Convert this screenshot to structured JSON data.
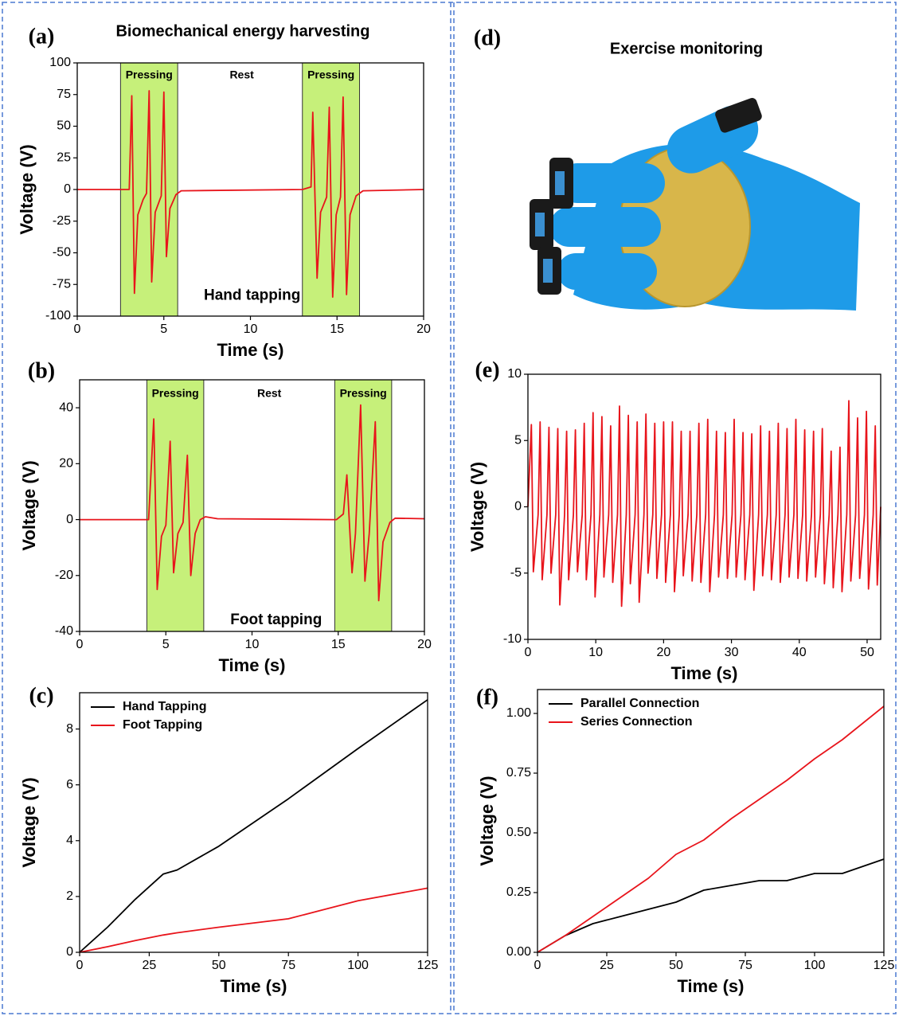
{
  "chart_data": [
    {
      "type": "line",
      "label": "(a)",
      "title": "Biomechanical energy harvesting",
      "x_label": "Time (s)",
      "y_label": "Voltage (V)",
      "xlim": [
        0,
        20
      ],
      "ylim": [
        -100,
        100
      ],
      "xticks": [
        0,
        5,
        10,
        15,
        20
      ],
      "yticks": [
        -100,
        -75,
        -50,
        -25,
        0,
        25,
        50,
        75,
        100
      ],
      "color": "#e8141b",
      "region_color": "#c6f07a",
      "regions": [
        [
          2.5,
          5.8
        ],
        [
          13.0,
          16.3
        ]
      ],
      "annotations": [
        {
          "text": "Pressing",
          "x": 4.15,
          "y": 90
        },
        {
          "text": "Rest",
          "x": 9.5,
          "y": 90
        },
        {
          "text": "Pressing",
          "x": 14.65,
          "y": 90
        },
        {
          "text": "Hand tapping",
          "x": 10.1,
          "y": -84
        }
      ],
      "x": [
        0,
        3.0,
        3.15,
        3.3,
        3.5,
        3.8,
        4.0,
        4.15,
        4.3,
        4.5,
        4.85,
        5.0,
        5.15,
        5.35,
        5.7,
        6.0,
        13.0,
        13.5,
        13.6,
        13.85,
        14.05,
        14.4,
        14.55,
        14.75,
        14.95,
        15.2,
        15.35,
        15.55,
        15.75,
        16.1,
        16.5,
        20
      ],
      "values": [
        0,
        0,
        74,
        -82,
        -20,
        -8,
        -3,
        78,
        -73,
        -18,
        -5,
        77,
        -53,
        -15,
        -4,
        -1,
        0,
        2,
        61,
        -70,
        -18,
        -6,
        65,
        -85,
        -20,
        -6,
        73,
        -83,
        -20,
        -5,
        -1,
        0
      ]
    },
    {
      "type": "line",
      "label": "(b)",
      "x_label": "Time (s)",
      "y_label": "Voltage (V)",
      "xlim": [
        0,
        20
      ],
      "ylim": [
        -40,
        50
      ],
      "xticks": [
        0,
        5,
        10,
        15,
        20
      ],
      "yticks": [
        -40,
        -20,
        0,
        20,
        40
      ],
      "color": "#e8141b",
      "region_color": "#c6f07a",
      "regions": [
        [
          3.9,
          7.2
        ],
        [
          14.8,
          18.1
        ]
      ],
      "annotations": [
        {
          "text": "Pressing",
          "x": 5.55,
          "y": 45
        },
        {
          "text": "Rest",
          "x": 11,
          "y": 45
        },
        {
          "text": "Pressing",
          "x": 16.45,
          "y": 45
        },
        {
          "text": "Foot tapping",
          "x": 11.4,
          "y": -36
        }
      ],
      "x": [
        0,
        4.0,
        4.3,
        4.5,
        4.75,
        5.0,
        5.25,
        5.45,
        5.7,
        6.0,
        6.25,
        6.45,
        6.7,
        7.0,
        7.3,
        8,
        14.9,
        15.3,
        15.5,
        15.8,
        16.0,
        16.3,
        16.55,
        16.8,
        17.15,
        17.35,
        17.6,
        18.0,
        18.3,
        20
      ],
      "values": [
        0,
        0,
        36,
        -25,
        -6,
        -2,
        28,
        -19,
        -5,
        -1,
        23,
        -20,
        -5,
        0,
        1,
        0.3,
        0,
        2,
        16,
        -19,
        -5,
        41,
        -22,
        -5,
        35,
        -29,
        -8,
        -1,
        0.5,
        0.3
      ]
    },
    {
      "type": "line",
      "label": "(c)",
      "x_label": "Time (s)",
      "y_label": "Voltage (V)",
      "xlim": [
        0,
        125
      ],
      "ylim": [
        0,
        9.3
      ],
      "xticks": [
        0,
        25,
        50,
        75,
        100,
        125
      ],
      "yticks": [
        0,
        2,
        4,
        6,
        8
      ],
      "legend": "upper left",
      "x": [
        0,
        10,
        20,
        30,
        35,
        50,
        75,
        100,
        125
      ],
      "series": [
        {
          "name": "Hand Tapping",
          "color": "#000000",
          "values": [
            0,
            0.9,
            1.9,
            2.8,
            2.95,
            3.8,
            5.5,
            7.3,
            9.05
          ]
        },
        {
          "name": "Foot Tapping",
          "color": "#e8141b",
          "values": [
            0,
            0.2,
            0.42,
            0.62,
            0.7,
            0.9,
            1.2,
            1.85,
            2.3
          ]
        }
      ]
    },
    {
      "type": "line",
      "label": "(e)",
      "x_label": "Time (s)",
      "y_label": "Voltage (V)",
      "xlim": [
        0,
        52
      ],
      "ylim": [
        -10,
        10
      ],
      "xticks": [
        0,
        10,
        20,
        30,
        40,
        50
      ],
      "yticks": [
        -10,
        -5,
        0,
        5,
        10
      ],
      "color": "#e8141b",
      "x": [
        0,
        0.5,
        0.8,
        1.5,
        1.8,
        2.1,
        2.8,
        3.1,
        3.4,
        4.1,
        4.4,
        4.7,
        5.4,
        5.7,
        6.0,
        6.7,
        7.0,
        7.3,
        8.0,
        8.3,
        8.6,
        9.3,
        9.6,
        9.9,
        10.6,
        10.9,
        11.2,
        11.9,
        12.2,
        12.5,
        13.2,
        13.5,
        13.8,
        14.5,
        14.8,
        15.1,
        15.8,
        16.1,
        16.4,
        17.1,
        17.4,
        17.7,
        18.4,
        18.7,
        19.0,
        19.7,
        20.0,
        20.3,
        21.0,
        21.3,
        21.6,
        22.3,
        22.6,
        22.9,
        23.6,
        23.9,
        24.2,
        24.9,
        25.2,
        25.5,
        26.2,
        26.5,
        26.8,
        27.5,
        27.8,
        28.1,
        28.8,
        29.1,
        29.4,
        30.1,
        30.4,
        30.7,
        31.4,
        31.7,
        32.0,
        32.7,
        33.0,
        33.3,
        34.0,
        34.3,
        34.6,
        35.3,
        35.6,
        35.9,
        36.6,
        36.9,
        37.2,
        37.9,
        38.2,
        38.5,
        39.2,
        39.5,
        39.8,
        40.5,
        40.8,
        41.1,
        41.8,
        42.1,
        42.4,
        43.1,
        43.4,
        43.7,
        44.4,
        44.7,
        45.0,
        45.7,
        46.0,
        46.3,
        47.0,
        47.3,
        47.6,
        48.3,
        48.6,
        48.9,
        49.6,
        49.9,
        50.2,
        50.9,
        51.2,
        51.5,
        52.0
      ],
      "values": [
        0,
        6.2,
        -4.9,
        -0.6,
        6.4,
        -5.5,
        -0.6,
        6.0,
        -5.0,
        -0.6,
        5.9,
        -7.4,
        -0.6,
        5.7,
        -5.5,
        -0.6,
        5.8,
        -4.9,
        -0.6,
        6.3,
        -5.5,
        -0.6,
        7.1,
        -6.8,
        -0.6,
        6.8,
        -5.3,
        -0.6,
        6.1,
        -5.7,
        -0.6,
        7.6,
        -7.5,
        -0.6,
        6.9,
        -5.8,
        -0.6,
        6.4,
        -7.2,
        -0.6,
        7.0,
        -5.0,
        -0.6,
        6.3,
        -5.4,
        -0.6,
        6.4,
        -5.7,
        -0.6,
        6.4,
        -6.4,
        -0.6,
        5.7,
        -5.2,
        -0.6,
        5.7,
        -5.6,
        -0.6,
        6.3,
        -5.7,
        -0.6,
        6.6,
        -6.4,
        -0.6,
        5.7,
        -5.3,
        -0.6,
        5.6,
        -5.4,
        -0.6,
        6.6,
        -5.3,
        -0.6,
        5.6,
        -5.5,
        -0.6,
        5.5,
        -6.3,
        -0.6,
        6.1,
        -5.2,
        -0.6,
        5.7,
        -5.5,
        -0.6,
        6.3,
        -5.7,
        -0.6,
        5.9,
        -5.3,
        -0.6,
        6.6,
        -5.4,
        -0.6,
        5.8,
        -5.6,
        -0.6,
        5.7,
        -5.3,
        -0.6,
        5.9,
        -5.8,
        -0.6,
        4.2,
        -6.1,
        -0.6,
        4.5,
        -6.4,
        -0.6,
        8.0,
        -5.6,
        -0.6,
        6.7,
        -5.4,
        -0.6,
        7.2,
        -6.2,
        -0.6,
        6.1,
        -5.9,
        0
      ]
    },
    {
      "type": "line",
      "label": "(f)",
      "x_label": "Time (s)",
      "y_label": "Voltage (V)",
      "xlim": [
        0,
        125
      ],
      "ylim": [
        0,
        1.1
      ],
      "xticks": [
        0,
        25,
        50,
        75,
        100,
        125
      ],
      "legend": "upper left",
      "yticks": [
        {
          "value": 0,
          "label": "0.00"
        },
        {
          "value": 0.25,
          "label": "0.25"
        },
        {
          "value": 0.5,
          "label": "0.50"
        },
        {
          "value": 0.75,
          "label": "0.75"
        },
        {
          "value": 1,
          "label": "1.00"
        }
      ],
      "x": [
        0,
        10,
        20,
        30,
        40,
        50,
        60,
        70,
        80,
        90,
        100,
        110,
        125
      ],
      "series": [
        {
          "name": "Parallel Connection",
          "color": "#000000",
          "values": [
            0,
            0.07,
            0.12,
            0.15,
            0.18,
            0.21,
            0.26,
            0.28,
            0.3,
            0.3,
            0.33,
            0.33,
            0.39
          ]
        },
        {
          "name": "Series Connection",
          "color": "#e8141b",
          "values": [
            0,
            0.07,
            0.15,
            0.23,
            0.31,
            0.41,
            0.47,
            0.56,
            0.64,
            0.72,
            0.81,
            0.89,
            1.03
          ]
        }
      ]
    }
  ],
  "panel_d": {
    "label": "(d)",
    "title": "Exercise monitoring"
  }
}
